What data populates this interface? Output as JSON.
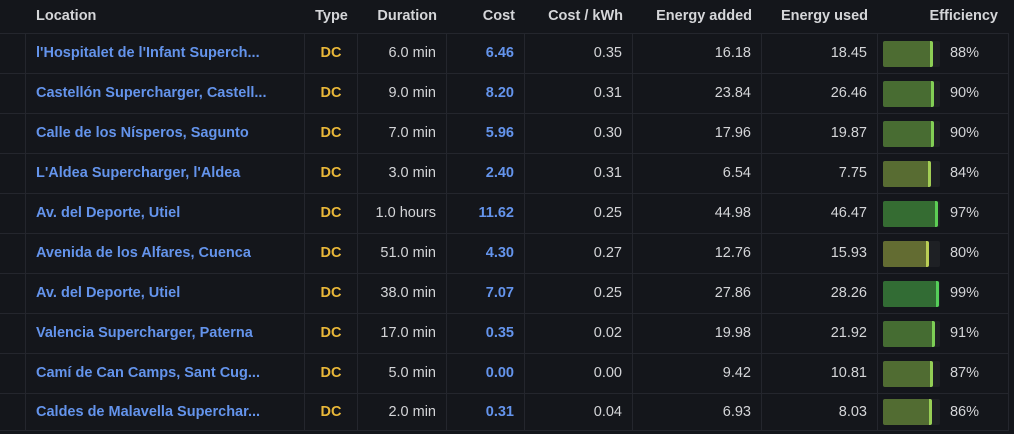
{
  "panel": {
    "kind": "charging-sessions-table"
  },
  "colors": {
    "background": "#14161b",
    "border": "#24262d",
    "header_text": "#d5d6d9",
    "body_text": "#d4d5d8",
    "link_blue": "#6494ec",
    "type_amber": "#eab839",
    "gauge_green_stripe": "#5fc463",
    "gauge_yellow_stripe": "#bccb55"
  },
  "table": {
    "columns": {
      "location": "Location",
      "type": "Type",
      "duration": "Duration",
      "cost": "Cost",
      "cost_per_kwh": "Cost / kWh",
      "energy_added": "Energy added",
      "energy_used": "Energy used",
      "efficiency": "Efficiency"
    }
  },
  "rows": [
    {
      "location": "l'Hospitalet de l'Infant Superch...",
      "type": "DC",
      "duration": "6.0 min",
      "cost": "6.46",
      "cost_per_kwh": "0.35",
      "energy_added": "16.18",
      "energy_used": "18.45",
      "efficiency": "88%",
      "efficiency_pct": 88
    },
    {
      "location": "Castellón Supercharger, Castell...",
      "type": "DC",
      "duration": "9.0 min",
      "cost": "8.20",
      "cost_per_kwh": "0.31",
      "energy_added": "23.84",
      "energy_used": "26.46",
      "efficiency": "90%",
      "efficiency_pct": 90
    },
    {
      "location": "Calle de los Nísperos, Sagunto",
      "type": "DC",
      "duration": "7.0 min",
      "cost": "5.96",
      "cost_per_kwh": "0.30",
      "energy_added": "17.96",
      "energy_used": "19.87",
      "efficiency": "90%",
      "efficiency_pct": 90
    },
    {
      "location": "L'Aldea Supercharger, l'Aldea",
      "type": "DC",
      "duration": "3.0 min",
      "cost": "2.40",
      "cost_per_kwh": "0.31",
      "energy_added": "6.54",
      "energy_used": "7.75",
      "efficiency": "84%",
      "efficiency_pct": 84
    },
    {
      "location": "Av. del Deporte, Utiel",
      "type": "DC",
      "duration": "1.0 hours",
      "cost": "11.62",
      "cost_per_kwh": "0.25",
      "energy_added": "44.98",
      "energy_used": "46.47",
      "efficiency": "97%",
      "efficiency_pct": 97
    },
    {
      "location": "Avenida de los Alfares, Cuenca",
      "type": "DC",
      "duration": "51.0 min",
      "cost": "4.30",
      "cost_per_kwh": "0.27",
      "energy_added": "12.76",
      "energy_used": "15.93",
      "efficiency": "80%",
      "efficiency_pct": 80
    },
    {
      "location": "Av. del Deporte, Utiel",
      "type": "DC",
      "duration": "38.0 min",
      "cost": "7.07",
      "cost_per_kwh": "0.25",
      "energy_added": "27.86",
      "energy_used": "28.26",
      "efficiency": "99%",
      "efficiency_pct": 99
    },
    {
      "location": "Valencia Supercharger, Paterna",
      "type": "DC",
      "duration": "17.0 min",
      "cost": "0.35",
      "cost_per_kwh": "0.02",
      "energy_added": "19.98",
      "energy_used": "21.92",
      "efficiency": "91%",
      "efficiency_pct": 91
    },
    {
      "location": "Camí de Can Camps, Sant Cug...",
      "type": "DC",
      "duration": "5.0 min",
      "cost": "0.00",
      "cost_per_kwh": "0.00",
      "energy_added": "9.42",
      "energy_used": "10.81",
      "efficiency": "87%",
      "efficiency_pct": 87
    },
    {
      "location": "Caldes de Malavella Superchar...",
      "type": "DC",
      "duration": "2.0 min",
      "cost": "0.31",
      "cost_per_kwh": "0.04",
      "energy_added": "6.93",
      "energy_used": "8.03",
      "efficiency": "86%",
      "efficiency_pct": 86
    }
  ]
}
